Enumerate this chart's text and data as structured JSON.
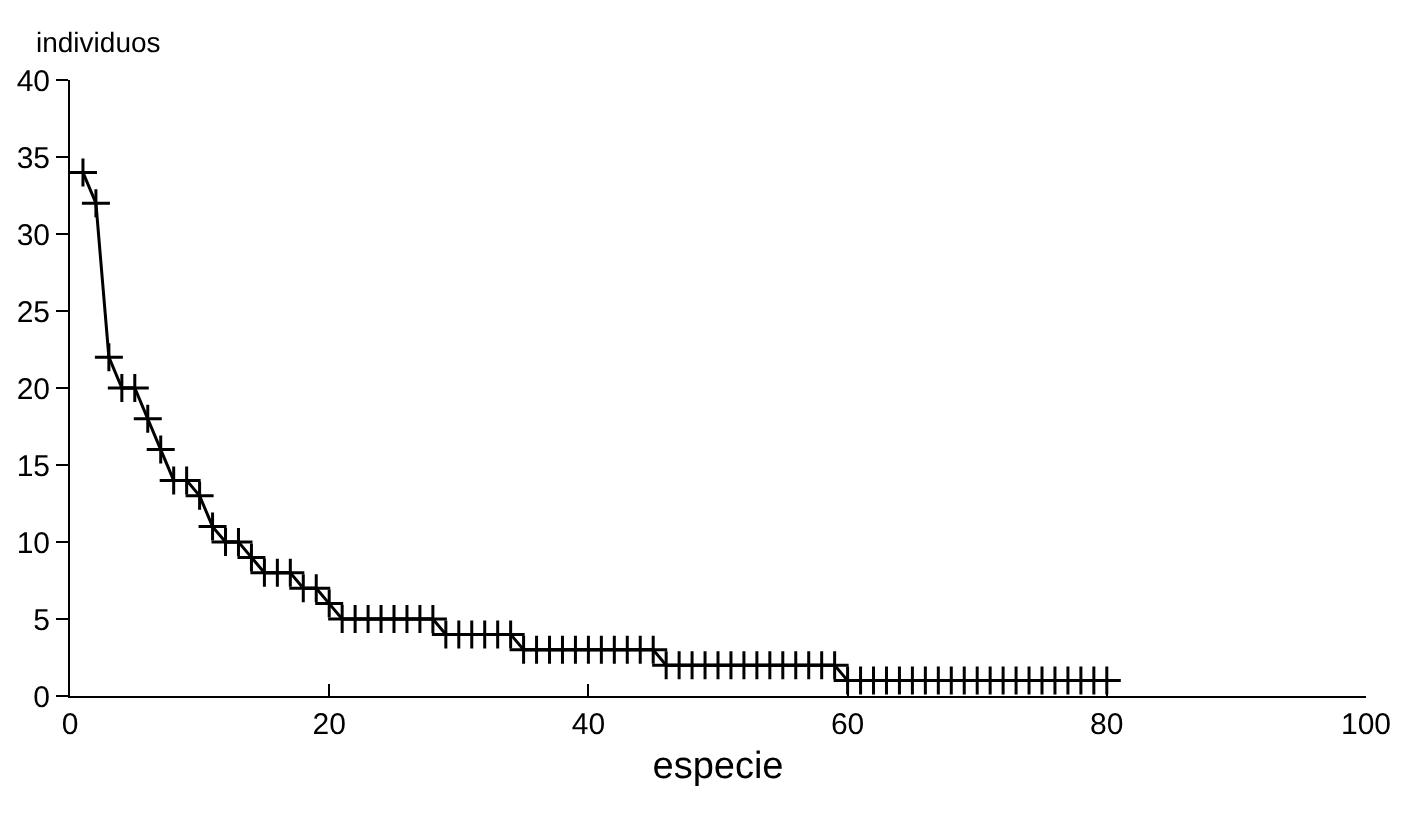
{
  "chart_data": {
    "type": "line",
    "xlabel": "especie",
    "ylabel": "individuos",
    "marker": "cross",
    "line_style": "solid",
    "grid": false,
    "x": [
      1,
      2,
      3,
      4,
      5,
      6,
      7,
      8,
      9,
      10,
      11,
      12,
      13,
      14,
      15,
      16,
      17,
      18,
      19,
      20,
      21,
      22,
      23,
      24,
      25,
      26,
      27,
      28,
      29,
      30,
      31,
      32,
      33,
      34,
      35,
      36,
      37,
      38,
      39,
      40,
      41,
      42,
      43,
      44,
      45,
      46,
      47,
      48,
      49,
      50,
      51,
      52,
      53,
      54,
      55,
      56,
      57,
      58,
      59,
      60,
      61,
      62,
      63,
      64,
      65,
      66,
      67,
      68,
      69,
      70,
      71,
      72,
      73,
      74,
      75,
      76,
      77,
      78,
      79,
      80
    ],
    "series": [
      {
        "color": "#000000",
        "values": [
          34,
          32,
          22,
          20,
          20,
          18,
          16,
          14,
          14,
          13,
          11,
          10,
          10,
          9,
          8,
          8,
          8,
          7,
          7,
          6,
          5,
          5,
          5,
          5,
          5,
          5,
          5,
          5,
          4,
          4,
          4,
          4,
          4,
          4,
          3,
          3,
          3,
          3,
          3,
          3,
          3,
          3,
          3,
          3,
          3,
          2,
          2,
          2,
          2,
          2,
          2,
          2,
          2,
          2,
          2,
          2,
          2,
          2,
          2,
          1,
          1,
          1,
          1,
          1,
          1,
          1,
          1,
          1,
          1,
          1,
          1,
          1,
          1,
          1,
          1,
          1,
          1,
          1,
          1,
          1
        ]
      }
    ],
    "xlim": [
      0,
      100
    ],
    "xticks": [
      0,
      20,
      40,
      60,
      80,
      100
    ],
    "ylim": [
      0,
      40
    ],
    "yticks": [
      0,
      5,
      10,
      15,
      20,
      25,
      30,
      35,
      40
    ]
  }
}
